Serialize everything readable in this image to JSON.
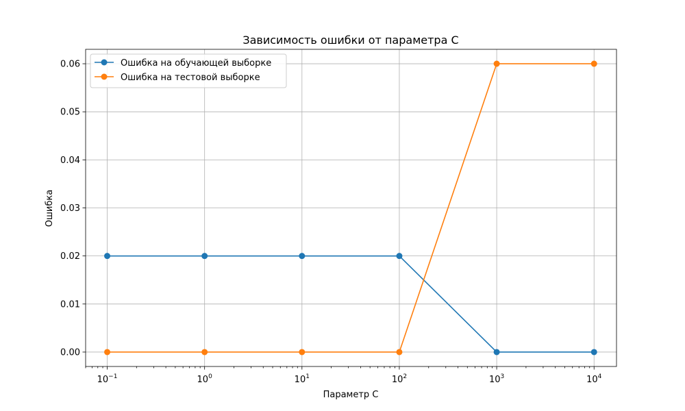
{
  "chart_data": {
    "type": "line",
    "title": "Зависимость ошибки от параметра C",
    "xlabel": "Параметр C",
    "ylabel": "Ошибка",
    "xscale": "log",
    "x": [
      0.1,
      1,
      10,
      100,
      1000,
      10000
    ],
    "xlim": [
      0.06,
      17000
    ],
    "ylim": [
      -0.003,
      0.063
    ],
    "xticks": [
      {
        "value": 0.1,
        "base": "10",
        "exp": "−1"
      },
      {
        "value": 1,
        "base": "10",
        "exp": "0"
      },
      {
        "value": 10,
        "base": "10",
        "exp": "1"
      },
      {
        "value": 100,
        "base": "10",
        "exp": "2"
      },
      {
        "value": 1000,
        "base": "10",
        "exp": "3"
      },
      {
        "value": 10000,
        "base": "10",
        "exp": "4"
      }
    ],
    "yticks": [
      {
        "value": 0.0,
        "label": "0.00"
      },
      {
        "value": 0.01,
        "label": "0.01"
      },
      {
        "value": 0.02,
        "label": "0.02"
      },
      {
        "value": 0.03,
        "label": "0.03"
      },
      {
        "value": 0.04,
        "label": "0.04"
      },
      {
        "value": 0.05,
        "label": "0.05"
      },
      {
        "value": 0.06,
        "label": "0.06"
      }
    ],
    "grid": true,
    "legend_position": "top-left",
    "series": [
      {
        "name": "Ошибка на обучающей выборке",
        "color": "#1f77b4",
        "values": [
          0.02,
          0.02,
          0.02,
          0.02,
          0.0,
          0.0
        ]
      },
      {
        "name": "Ошибка на тестовой выборке",
        "color": "#ff7f0e",
        "values": [
          0.0,
          0.0,
          0.0,
          0.0,
          0.06,
          0.06
        ]
      }
    ]
  }
}
